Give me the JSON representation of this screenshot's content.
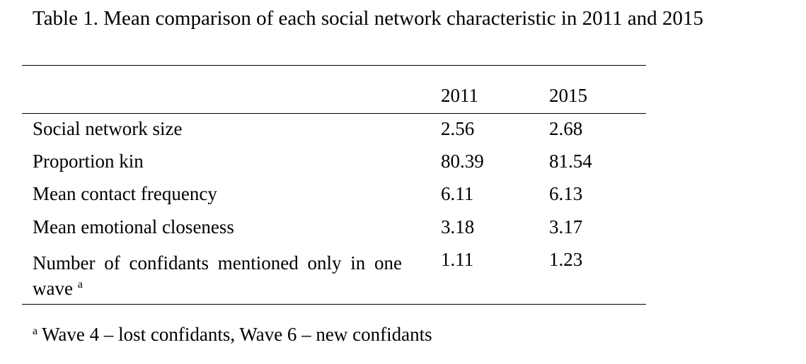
{
  "caption": "Table 1. Mean comparison of each social network characteristic in 2011 and 2015",
  "table": {
    "headers": [
      "",
      "2011",
      "2015"
    ],
    "rows": [
      {
        "label": "Social network size",
        "v2011": "2.56",
        "v2015": "2.68"
      },
      {
        "label": "Proportion kin",
        "v2011": "80.39",
        "v2015": "81.54"
      },
      {
        "label": "Mean contact frequency",
        "v2011": "6.11",
        "v2015": "6.13"
      },
      {
        "label": "Mean emotional closeness",
        "v2011": "3.18",
        "v2015": "3.17"
      },
      {
        "label": "Number of confidants mentioned only in one wave",
        "label_marker": "a",
        "v2011": "1.11",
        "v2015": "1.23"
      }
    ]
  },
  "footnote": {
    "marker": "a",
    "text": "Wave 4 – lost confidants, Wave 6 – new confidants"
  }
}
